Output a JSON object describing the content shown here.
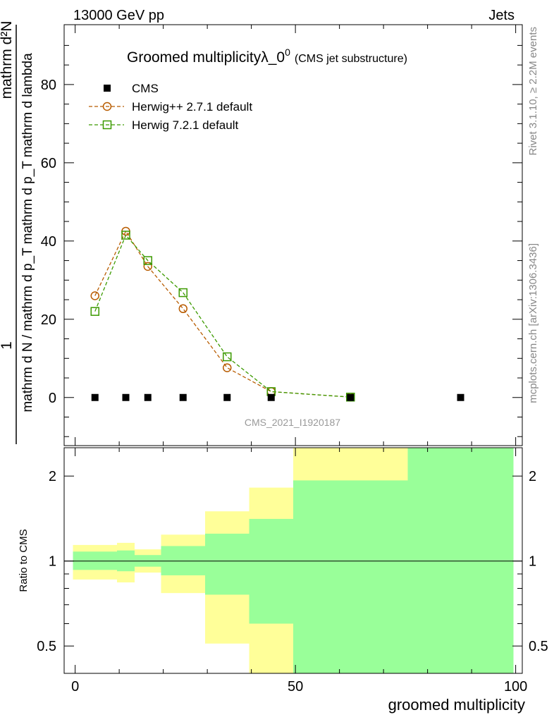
{
  "header": {
    "left": "13000 GeV pp",
    "right": "Jets"
  },
  "side": {
    "rivet": "Rivet 3.1.10, ≥ 2.2M events",
    "mcplots": "mcplots.cern.ch [arXiv:1306.3436]"
  },
  "watermark": "CMS_2021_I1920187",
  "chart_data": [
    {
      "type": "scatter",
      "title": "Groomed multiplicityλ_0",
      "title_sup": "0",
      "subtitle": "(CMS jet substructure)",
      "ylabel_num_top": "mathrm d²N",
      "ylabel_one": "1",
      "ylabel_den": "mathrm d N / mathrm d p_T mathrm d p_T mathrm d lambda",
      "xlim": [
        -2.5,
        101.5
      ],
      "ylim": [
        -12.3,
        95.3
      ],
      "yticks": [
        0,
        20,
        40,
        60,
        80
      ],
      "bin_edges": [
        -0.5,
        9.5,
        13.5,
        19.5,
        29.5,
        39.5,
        49.5,
        75.5,
        99.5
      ],
      "x": [
        4.5,
        11.5,
        16.5,
        24.5,
        34.5,
        44.5,
        62.5,
        87.5
      ],
      "legend_position": "top-left",
      "series": [
        {
          "name": "CMS",
          "color": "#000000",
          "marker": "square-filled",
          "values": [
            0,
            0,
            0,
            0,
            0,
            0,
            0,
            0
          ]
        },
        {
          "name": "Herwig++ 2.7.1 default",
          "color": "#b85c00",
          "marker": "circle",
          "values": [
            26.0,
            42.5,
            33.5,
            22.7,
            7.6,
            1.5,
            0.1,
            null
          ]
        },
        {
          "name": "Herwig 7.2.1 default",
          "color": "#3c9a00",
          "marker": "square",
          "values": [
            22.0,
            41.5,
            35.0,
            26.8,
            10.4,
            1.5,
            0.1,
            null
          ]
        }
      ]
    },
    {
      "type": "area",
      "ylabel": "Ratio to CMS",
      "xlabel": "groomed multiplicity",
      "yscale": "log",
      "ylim": [
        0.4,
        2.52
      ],
      "yticks": [
        0.5,
        1,
        2
      ],
      "xticks": [
        0,
        50,
        100
      ],
      "bin_edges": [
        -0.5,
        9.5,
        13.5,
        19.5,
        29.5,
        39.5,
        49.5,
        75.5,
        99.5
      ],
      "yellow_band": {
        "color": "#ffff99",
        "lo": [
          0.86,
          0.84,
          0.91,
          0.77,
          0.51,
          0.35,
          0.35,
          0.35
        ],
        "hi": [
          1.14,
          1.16,
          1.1,
          1.24,
          1.5,
          1.82,
          3.0,
          3.0
        ]
      },
      "green_band": {
        "color": "#99ff99",
        "lo": [
          0.93,
          0.92,
          0.955,
          0.89,
          0.76,
          0.6,
          0.35,
          0.35
        ],
        "hi": [
          1.08,
          1.09,
          1.05,
          1.13,
          1.25,
          1.41,
          1.93,
          3.0
        ]
      }
    }
  ]
}
